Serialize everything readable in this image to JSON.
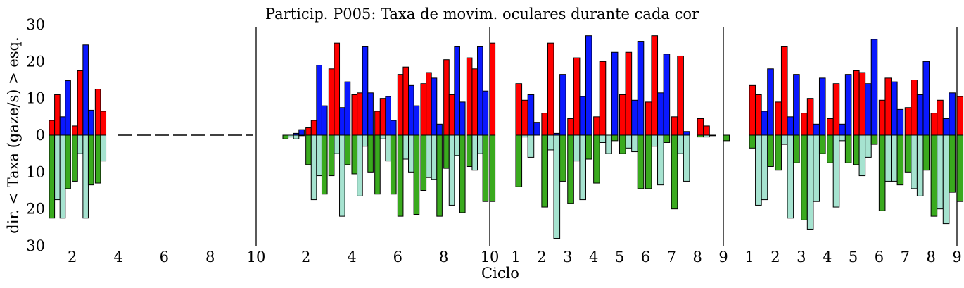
{
  "chart_data": {
    "type": "bar",
    "title": "Particip. P005: Taxa de movim. oculares durante cada cor",
    "xlabel": "Ciclo",
    "ylabel": "dir. < Taxa (gaze/s) > esq.",
    "ylim": [
      -30,
      30
    ],
    "yticks": [
      30,
      20,
      10,
      0,
      10,
      20,
      30
    ],
    "colors": {
      "red": "#ff0000",
      "blue": "#0a18ff",
      "green": "#3aaa1e",
      "lightgreen": "#a6e3d0"
    },
    "panels": [
      {
        "xlim": [
          1,
          10
        ],
        "xticks": [
          2,
          4,
          6,
          8,
          10
        ],
        "cycles_plotted": 3,
        "dashed_zero_after": true,
        "series": [
          {
            "color": "red",
            "values": [
              4,
              2.5,
              12.5
            ]
          },
          {
            "color": "red",
            "values": [
              11,
              17.5,
              6.5
            ]
          },
          {
            "color": "blue",
            "values": [
              5,
              24.5,
              null
            ]
          },
          {
            "color": "blue",
            "values": [
              14.8,
              6.8,
              null
            ]
          },
          {
            "color": "green",
            "values": [
              -22.5,
              -12.5,
              -13
            ]
          },
          {
            "color": "lightgreen",
            "values": [
              -17.5,
              -5,
              -7
            ]
          },
          {
            "color": "lightgreen",
            "values": [
              -22.5,
              -22.5,
              null
            ]
          },
          {
            "color": "green",
            "values": [
              -14.5,
              -13.5,
              null
            ]
          }
        ]
      },
      {
        "xlim": [
          1,
          10
        ],
        "xticks": [
          2,
          4,
          6,
          8,
          10
        ],
        "cycles_plotted": 10,
        "series": [
          {
            "color": "red",
            "values": [
              0,
              2,
              18,
              11,
              6.5,
              16.5,
              14,
              20.5,
              21,
              25
            ]
          },
          {
            "color": "red",
            "values": [
              0,
              4,
              25,
              11.5,
              10,
              18.5,
              17,
              11,
              18,
              null
            ]
          },
          {
            "color": "blue",
            "values": [
              0.5,
              19,
              7.5,
              24,
              10.5,
              13.5,
              15.5,
              24,
              24,
              null
            ]
          },
          {
            "color": "blue",
            "values": [
              1.5,
              8,
              14.5,
              11.5,
              4,
              8,
              3,
              9,
              12,
              null
            ]
          },
          {
            "color": "green",
            "values": [
              -1,
              -8,
              -11,
              -10.5,
              -16,
              -22,
              -15,
              -9,
              -8.5,
              -18
            ]
          },
          {
            "color": "lightgreen",
            "values": [
              -0.5,
              -17.5,
              -5,
              -16.5,
              -1,
              -6.5,
              -11.5,
              -19,
              -9.5,
              null
            ]
          },
          {
            "color": "lightgreen",
            "values": [
              -1,
              -11,
              -22,
              -3,
              -7,
              -10,
              -12,
              -5.5,
              -5,
              null
            ]
          },
          {
            "color": "green",
            "values": [
              0,
              -16,
              -8,
              -10,
              -16,
              -21.5,
              -22,
              -21,
              -18,
              null
            ]
          }
        ]
      },
      {
        "xlim": [
          1,
          9
        ],
        "xticks": [
          1,
          2,
          3,
          4,
          5,
          6,
          7,
          8,
          9
        ],
        "cycles_plotted": 9,
        "series": [
          {
            "color": "red",
            "values": [
              14,
              6,
              4.5,
              5,
              11,
              9,
              5,
              4.5,
              0
            ]
          },
          {
            "color": "red",
            "values": [
              9.5,
              25,
              21,
              20,
              22.5,
              27,
              21.5,
              2.5,
              null
            ]
          },
          {
            "color": "blue",
            "values": [
              11,
              0.5,
              10.5,
              0,
              9.5,
              11.5,
              1,
              0,
              null
            ]
          },
          {
            "color": "blue",
            "values": [
              3.5,
              16.5,
              27,
              22.5,
              25.5,
              22,
              null,
              null,
              null
            ]
          },
          {
            "color": "green",
            "values": [
              -14,
              -19.5,
              -18.5,
              -13,
              -5,
              -14.5,
              -20,
              -0.5,
              -1.5
            ]
          },
          {
            "color": "lightgreen",
            "values": [
              -0.5,
              -4,
              -7,
              -2,
              -3.5,
              -3,
              -5,
              -0.5,
              null
            ]
          },
          {
            "color": "lightgreen",
            "values": [
              -6,
              -28,
              -17.5,
              -5,
              -4.5,
              -13.5,
              -12.5,
              null,
              null
            ]
          },
          {
            "color": "green",
            "values": [
              null,
              -12.5,
              -6.5,
              -1.5,
              -14.5,
              -2,
              null,
              null,
              null
            ]
          }
        ]
      },
      {
        "xlim": [
          1,
          9
        ],
        "xticks": [
          1,
          2,
          3,
          4,
          5,
          6,
          7,
          8,
          9
        ],
        "cycles_plotted": 9,
        "series": [
          {
            "color": "red",
            "values": [
              13.5,
              9,
              6,
              4.5,
              17.5,
              9.5,
              7.5,
              6,
              10.5
            ]
          },
          {
            "color": "red",
            "values": [
              11,
              24,
              10,
              14,
              17,
              15.5,
              15,
              9.5,
              null
            ]
          },
          {
            "color": "blue",
            "values": [
              6.5,
              5,
              3,
              3,
              14,
              14.5,
              11,
              4.5,
              null
            ]
          },
          {
            "color": "blue",
            "values": [
              18,
              16.5,
              15.5,
              16.5,
              26,
              7,
              20,
              11.5,
              null
            ]
          },
          {
            "color": "green",
            "values": [
              -3.5,
              -9.5,
              -23,
              -7.5,
              -8,
              -20.5,
              -10,
              -22,
              -18
            ]
          },
          {
            "color": "lightgreen",
            "values": [
              -19,
              -2.5,
              -25.5,
              -19.5,
              -11,
              -12.5,
              -14.5,
              -20,
              null
            ]
          },
          {
            "color": "lightgreen",
            "values": [
              -17.5,
              -22.5,
              -18,
              -1.5,
              -6,
              -12.5,
              -16.5,
              -24,
              null
            ]
          },
          {
            "color": "green",
            "values": [
              -8.5,
              -7.5,
              -5,
              -7.5,
              -2.5,
              -13.5,
              -9.5,
              -15.5,
              null
            ]
          }
        ]
      }
    ]
  }
}
